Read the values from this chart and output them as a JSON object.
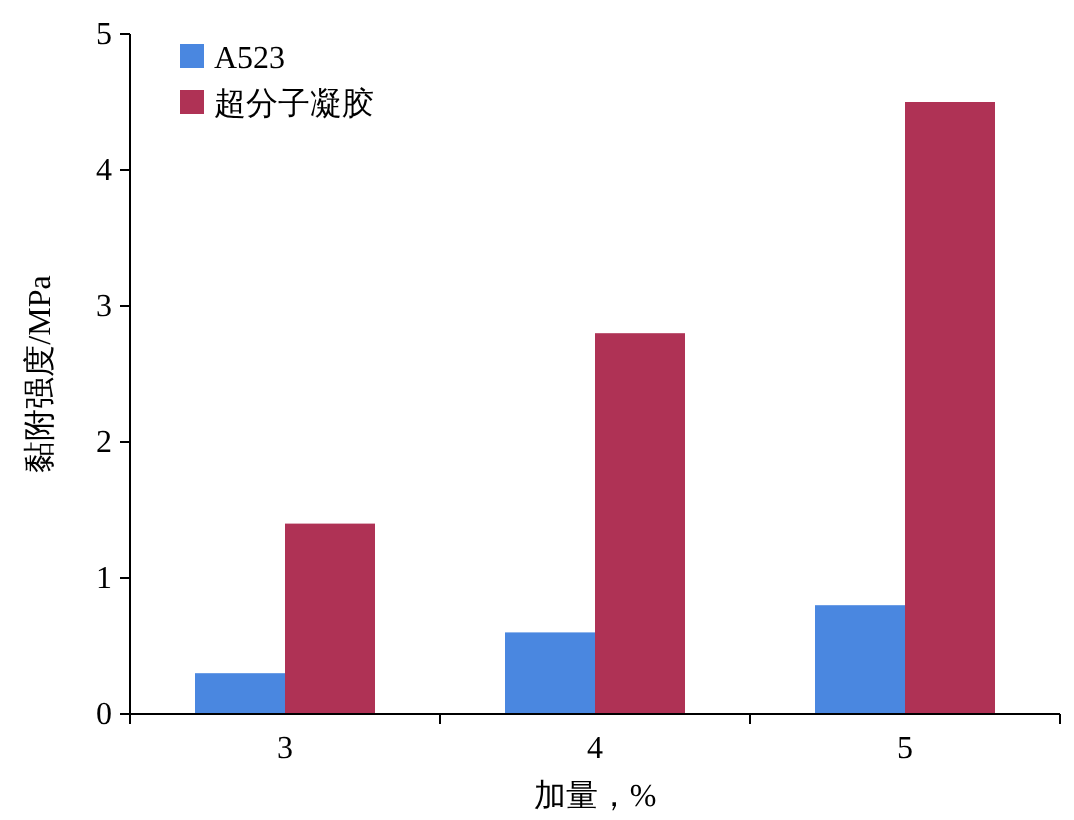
{
  "chart_data": {
    "type": "bar",
    "xlabel": "加量，%",
    "ylabel": "黏附强度/MPa",
    "categories": [
      "3",
      "4",
      "5"
    ],
    "series": [
      {
        "name": "A523",
        "color": "#4a87e0",
        "values": [
          0.3,
          0.6,
          0.8
        ]
      },
      {
        "name": "超分子凝胶",
        "color": "#af3255",
        "values": [
          1.4,
          2.8,
          4.5
        ]
      }
    ],
    "ylim": [
      0,
      5
    ],
    "yticks": [
      0,
      1,
      2,
      3,
      4,
      5
    ],
    "grid": false,
    "legend": "top left"
  }
}
